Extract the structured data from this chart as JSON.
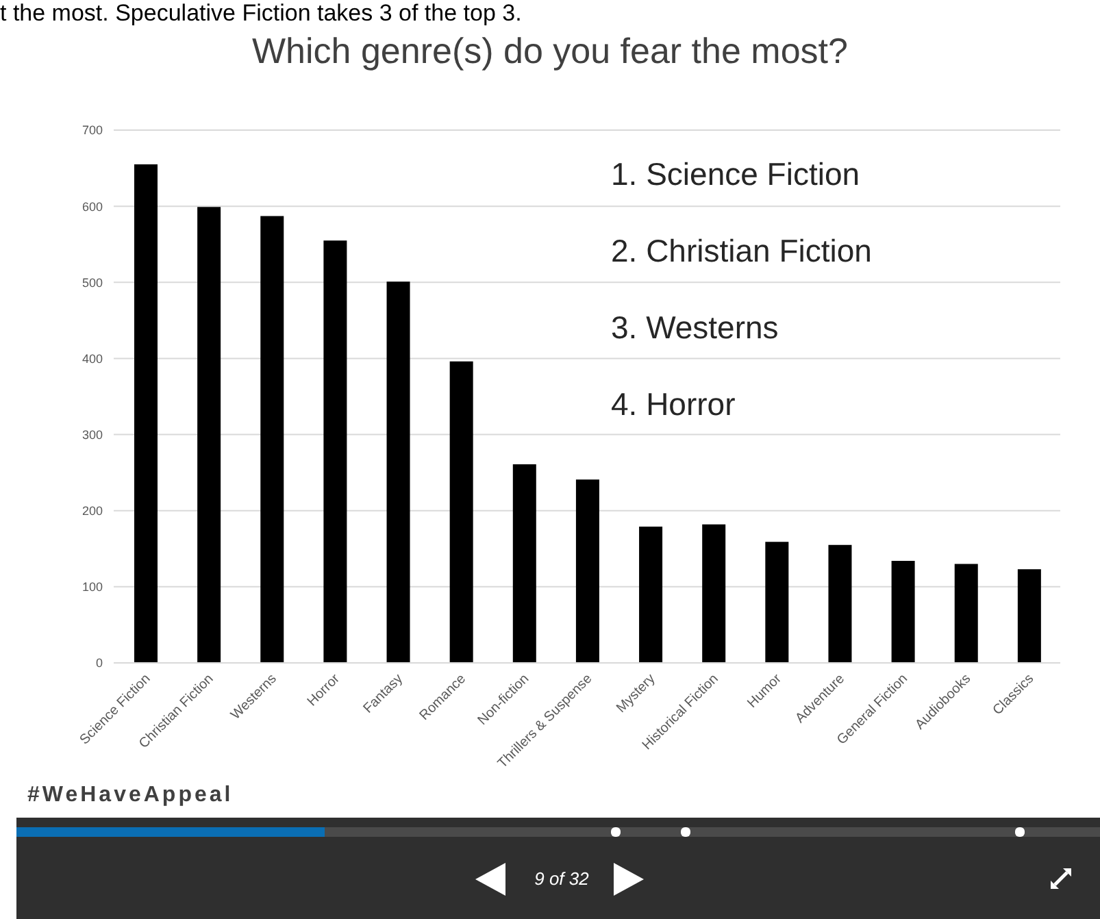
{
  "chart_data": {
    "type": "bar",
    "title": "Which genre(s) do you fear the most?",
    "categories": [
      "Science Fiction",
      "Christian Fiction",
      "Westerns",
      "Horror",
      "Fantasy",
      "Romance",
      "Non-fiction",
      "Thrillers & Suspense",
      "Mystery",
      "Historical Fiction",
      "Humor",
      "Adventure",
      "General Fiction",
      "Audiobooks",
      "Classics"
    ],
    "values": [
      655,
      599,
      587,
      555,
      501,
      396,
      261,
      241,
      179,
      182,
      159,
      155,
      134,
      130,
      123
    ],
    "color": "#000000",
    "ylim": [
      0,
      700
    ],
    "yticks": [
      0,
      100,
      200,
      300,
      400,
      500,
      600,
      700
    ],
    "grid": "y",
    "legend": false,
    "annotations": [
      "t the most. Speculative Fiction takes 3 of the top 3.",
      "1. Science Fiction",
      "2. Christian Fiction",
      "3. Westerns",
      "4. Horror",
      "#WeHaveAppeal",
      "9 of 32"
    ]
  }
}
